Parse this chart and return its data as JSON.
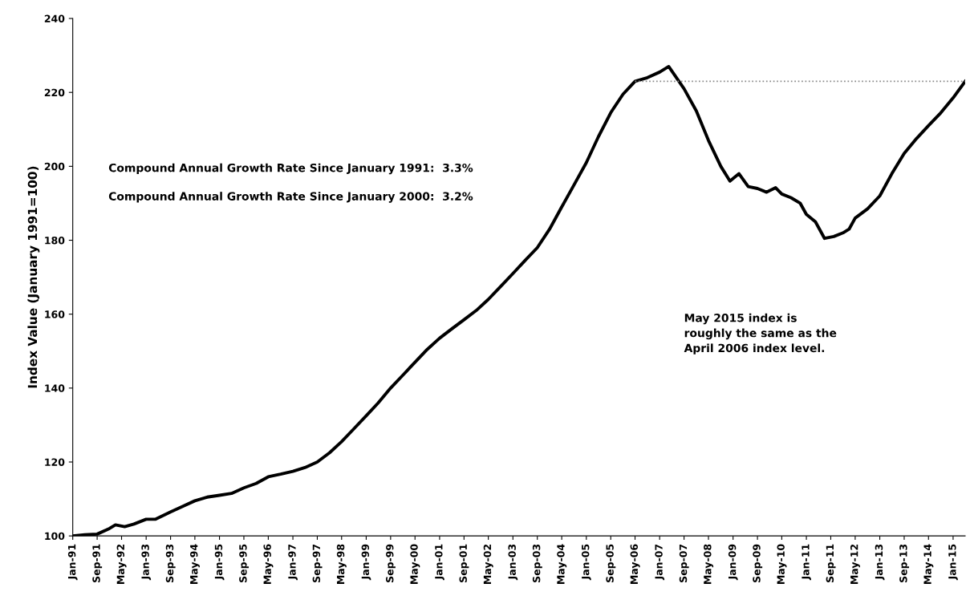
{
  "chart_data": {
    "type": "line",
    "ylabel": "Index Value (January 1991=100)",
    "annotations": [
      "Compound Annual Growth Rate Since January 1991:  3.3%",
      "Compound Annual Growth Rate Since January 2000:  3.2%",
      "May 2015 index is\nroughly the same as the\nApril 2006 index level."
    ],
    "series": [
      {
        "color": "#000000",
        "line_style": "solid",
        "x": [
          "1991-01",
          "1991-05",
          "1991-09",
          "1992-01",
          "1992-03",
          "1992-06",
          "1992-09",
          "1993-01",
          "1993-04",
          "1993-09",
          "1994-01",
          "1994-05",
          "1994-09",
          "1995-01",
          "1995-05",
          "1995-09",
          "1996-01",
          "1996-05",
          "1996-09",
          "1997-01",
          "1997-05",
          "1997-09",
          "1998-01",
          "1998-05",
          "1998-09",
          "1999-01",
          "1999-05",
          "1999-09",
          "2000-01",
          "2000-05",
          "2000-09",
          "2001-01",
          "2001-05",
          "2001-09",
          "2002-01",
          "2002-05",
          "2002-09",
          "2003-01",
          "2003-05",
          "2003-09",
          "2004-01",
          "2004-05",
          "2004-09",
          "2005-01",
          "2005-05",
          "2005-09",
          "2006-01",
          "2006-05",
          "2006-09",
          "2007-01",
          "2007-04",
          "2007-09",
          "2008-01",
          "2008-05",
          "2008-09",
          "2008-12",
          "2009-03",
          "2009-06",
          "2009-09",
          "2009-12",
          "2010-03",
          "2010-05",
          "2010-08",
          "2010-11",
          "2011-01",
          "2011-04",
          "2011-07",
          "2011-10",
          "2012-01",
          "2012-03",
          "2012-05",
          "2012-09",
          "2013-01",
          "2013-05",
          "2013-09",
          "2014-01",
          "2014-05",
          "2014-09",
          "2015-01",
          "2015-05"
        ],
        "values": [
          100,
          100.3,
          100.5,
          102,
          103,
          102.5,
          103.2,
          104.5,
          104.5,
          106.5,
          108,
          109.5,
          110.5,
          111,
          111.5,
          113,
          114.2,
          116,
          116.7,
          117.5,
          118.5,
          120,
          122.5,
          125.5,
          129,
          132.5,
          136,
          140,
          143.5,
          147,
          150.5,
          153.5,
          156,
          158.5,
          161,
          164,
          167.5,
          171,
          174.5,
          178,
          183,
          189,
          195,
          201,
          208,
          214.5,
          219.5,
          223,
          224,
          225.5,
          227,
          221,
          215,
          207,
          200,
          196,
          198,
          194.5,
          194,
          193,
          194.2,
          192.5,
          191.5,
          190,
          187,
          185,
          180.5,
          181,
          182,
          183,
          186,
          188.5,
          192,
          198,
          203.5,
          207.5,
          211,
          214.5,
          218.5,
          223
        ]
      },
      {
        "type": "line",
        "color": "#888888",
        "line_style": "dotted",
        "x": [
          "2006-05",
          "2015-05"
        ],
        "values": [
          223,
          223
        ]
      }
    ],
    "xlim": [
      "1991-01",
      "2015-05"
    ],
    "ylim": [
      100,
      240
    ],
    "yticks": [
      100,
      120,
      140,
      160,
      180,
      200,
      220,
      240
    ],
    "xticks": [
      {
        "value": "1991-01",
        "label": "Jan-91"
      },
      {
        "value": "1991-09",
        "label": "Sep-91"
      },
      {
        "value": "1992-05",
        "label": "May-92"
      },
      {
        "value": "1993-01",
        "label": "Jan-93"
      },
      {
        "value": "1993-09",
        "label": "Sep-93"
      },
      {
        "value": "1994-05",
        "label": "May-94"
      },
      {
        "value": "1995-01",
        "label": "Jan-95"
      },
      {
        "value": "1995-09",
        "label": "Sep-95"
      },
      {
        "value": "1996-05",
        "label": "May-96"
      },
      {
        "value": "1997-01",
        "label": "Jan-97"
      },
      {
        "value": "1997-09",
        "label": "Sep-97"
      },
      {
        "value": "1998-05",
        "label": "May-98"
      },
      {
        "value": "1999-01",
        "label": "Jan-99"
      },
      {
        "value": "1999-09",
        "label": "Sep-99"
      },
      {
        "value": "2000-05",
        "label": "May-00"
      },
      {
        "value": "2001-01",
        "label": "Jan-01"
      },
      {
        "value": "2001-09",
        "label": "Sep-01"
      },
      {
        "value": "2002-05",
        "label": "May-02"
      },
      {
        "value": "2003-01",
        "label": "Jan-03"
      },
      {
        "value": "2003-09",
        "label": "Sep-03"
      },
      {
        "value": "2004-05",
        "label": "May-04"
      },
      {
        "value": "2005-01",
        "label": "Jan-05"
      },
      {
        "value": "2005-09",
        "label": "Sep-05"
      },
      {
        "value": "2006-05",
        "label": "May-06"
      },
      {
        "value": "2007-01",
        "label": "Jan-07"
      },
      {
        "value": "2007-09",
        "label": "Sep-07"
      },
      {
        "value": "2008-05",
        "label": "May-08"
      },
      {
        "value": "2009-01",
        "label": "Jan-09"
      },
      {
        "value": "2009-09",
        "label": "Sep-09"
      },
      {
        "value": "2010-05",
        "label": "May-10"
      },
      {
        "value": "2011-01",
        "label": "Jan-11"
      },
      {
        "value": "2011-09",
        "label": "Sep-11"
      },
      {
        "value": "2012-05",
        "label": "May-12"
      },
      {
        "value": "2013-01",
        "label": "Jan-13"
      },
      {
        "value": "2013-09",
        "label": "Sep-13"
      },
      {
        "value": "2014-05",
        "label": "May-14"
      },
      {
        "value": "2015-01",
        "label": "Jan-15"
      }
    ],
    "grid": false,
    "legend": false,
    "marker": "none"
  }
}
